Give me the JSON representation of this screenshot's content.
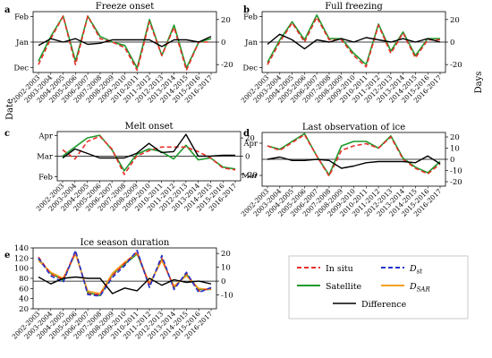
{
  "figure": {
    "left_axis_label": "Date",
    "right_axis_label": "Days"
  },
  "years": [
    "2002-2003",
    "2003-2004",
    "2004-2005",
    "2005-2006",
    "2006-2007",
    "2007-2008",
    "2008-2009",
    "2009-2010",
    "2010-2011",
    "2011-2012",
    "2012-2013",
    "2013-2014",
    "2014-2015",
    "2015-2016",
    "2016-2017"
  ],
  "legend": {
    "in_situ": "In situ",
    "d_st_main": "D",
    "d_st_sub": "st",
    "satellite": "Satellite",
    "d_sar_main": "D",
    "d_sar_sub": "SAR",
    "difference": "Difference"
  },
  "colors": {
    "in_situ": "#e8302a",
    "satellite": "#1f9a2c",
    "d_st": "#2233cc",
    "d_sar": "#f5a020",
    "difference": "#000000"
  },
  "chart_data": [
    {
      "type": "line",
      "panel_label": "a",
      "title": "Freeze onset",
      "left_ticks": [
        "Feb",
        "Jan",
        "Dec"
      ],
      "right_ticks": [
        20,
        0,
        -20
      ],
      "ylim_right": [
        -27,
        27
      ],
      "series": [
        {
          "key": "in_situ",
          "values": [
            -20,
            3,
            23,
            -20,
            23,
            3,
            0,
            -5,
            -25,
            18,
            -12,
            13,
            -25,
            0,
            0
          ]
        },
        {
          "key": "satellite",
          "values": [
            -17,
            5,
            23,
            -17,
            23,
            5,
            0,
            -3,
            -23,
            20,
            -12,
            15,
            -23,
            0,
            3
          ]
        },
        {
          "key": "difference",
          "values": [
            -3,
            3,
            0,
            3,
            -2,
            -1,
            2,
            2,
            2,
            2,
            -4,
            2,
            2,
            0,
            5
          ]
        }
      ]
    },
    {
      "type": "line",
      "panel_label": "b",
      "title": "Full freezing",
      "left_ticks": [
        "Feb",
        "Jan",
        "Dec"
      ],
      "right_ticks": [
        20,
        0,
        -20
      ],
      "ylim_right": [
        -27,
        27
      ],
      "series": [
        {
          "key": "in_situ",
          "values": [
            -20,
            0,
            17,
            0,
            22,
            2,
            2,
            -12,
            -22,
            15,
            -10,
            8,
            -14,
            2,
            2
          ]
        },
        {
          "key": "satellite",
          "values": [
            -18,
            2,
            18,
            2,
            24,
            3,
            3,
            -10,
            -20,
            16,
            -8,
            9,
            -12,
            3,
            3
          ]
        },
        {
          "key": "difference",
          "values": [
            -2,
            7,
            2,
            -6,
            2,
            0,
            3,
            0,
            4,
            2,
            0,
            3,
            0,
            3,
            0
          ]
        }
      ]
    },
    {
      "type": "line",
      "panel_label": "c",
      "title": "Melt onset",
      "left_ticks": [
        "Apr",
        "Mar",
        "Feb"
      ],
      "right_ticks": [
        20,
        0,
        -20
      ],
      "ylim_right": [
        -27,
        27
      ],
      "series": [
        {
          "key": "in_situ",
          "values": [
            7,
            -3,
            16,
            22,
            8,
            -20,
            0,
            6,
            10,
            10,
            10,
            5,
            -2,
            -13,
            -15
          ]
        },
        {
          "key": "satellite",
          "values": [
            0,
            10,
            20,
            23,
            7,
            -16,
            2,
            8,
            5,
            -3,
            12,
            -4,
            -2,
            -12,
            -14
          ]
        },
        {
          "key": "difference",
          "values": [
            -2,
            8,
            3,
            -2,
            -2,
            -2,
            3,
            14,
            4,
            5,
            24,
            0,
            0,
            1,
            1
          ]
        }
      ]
    },
    {
      "type": "line",
      "panel_label": "d",
      "title": "Last observation of ice",
      "left_ticks": [
        "Apr",
        "Mar"
      ],
      "right_ticks": [
        20,
        10,
        0,
        -10,
        -20
      ],
      "ylim_right": [
        -24,
        24
      ],
      "series": [
        {
          "key": "in_situ",
          "values": [
            12,
            8,
            15,
            22,
            3,
            -15,
            8,
            12,
            14,
            10,
            20,
            0,
            -8,
            -13,
            -4
          ]
        },
        {
          "key": "satellite",
          "values": [
            12,
            9,
            16,
            23,
            3,
            -14,
            12,
            16,
            16,
            10,
            21,
            1,
            -7,
            -12,
            -2
          ]
        },
        {
          "key": "difference",
          "values": [
            0,
            2,
            -1,
            -1,
            0,
            -1,
            -8,
            -6,
            -3,
            -2,
            -2,
            -2,
            -3,
            3,
            -4
          ]
        }
      ]
    },
    {
      "type": "line",
      "panel_label": "e",
      "title": "Ice season duration",
      "left_ticks": [
        140,
        120,
        100,
        80,
        60,
        40,
        20
      ],
      "right_ticks": [
        20,
        10,
        0,
        -10
      ],
      "ylim_left": [
        20,
        140
      ],
      "ylim_right": [
        -20,
        24
      ],
      "series": [
        {
          "key": "in_situ",
          "values": [
            122,
            88,
            78,
            132,
            50,
            48,
            85,
            110,
            132,
            65,
            120,
            60,
            90,
            55,
            60
          ]
        },
        {
          "key": "satellite",
          "values": [
            118,
            90,
            76,
            130,
            52,
            46,
            88,
            108,
            128,
            68,
            118,
            62,
            88,
            58,
            58
          ]
        },
        {
          "key": "d_st",
          "values": [
            120,
            85,
            72,
            135,
            48,
            45,
            82,
            105,
            135,
            62,
            125,
            58,
            92,
            52,
            62
          ]
        },
        {
          "key": "d_sar",
          "values": [
            115,
            92,
            80,
            128,
            55,
            50,
            90,
            112,
            130,
            70,
            115,
            65,
            85,
            60,
            58
          ]
        },
        {
          "key": "difference",
          "values": [
            3,
            -2,
            2,
            3,
            2,
            2,
            -9,
            -5,
            -7,
            2,
            -3,
            1,
            -1,
            0,
            -2
          ]
        }
      ]
    }
  ]
}
